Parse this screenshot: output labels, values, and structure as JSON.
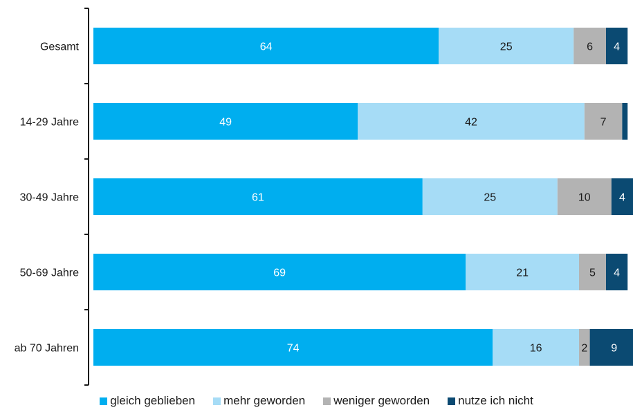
{
  "chart_data": {
    "type": "bar",
    "orientation": "horizontal",
    "stacked": true,
    "categories": [
      "Gesamt",
      "14-29 Jahre",
      "30-49 Jahre",
      "50-69 Jahre",
      "ab 70 Jahren"
    ],
    "series": [
      {
        "name": "gleich geblieben",
        "color": "#00aeef",
        "label_color": "#ffffff",
        "values": [
          64,
          49,
          61,
          69,
          74
        ]
      },
      {
        "name": "mehr geworden",
        "color": "#a6dcf6",
        "label_color": "#1a1a1a",
        "values": [
          25,
          42,
          25,
          21,
          16
        ]
      },
      {
        "name": "weniger geworden",
        "color": "#b3b3b3",
        "label_color": "#1a1a1a",
        "values": [
          6,
          7,
          10,
          5,
          2
        ]
      },
      {
        "name": "nutze ich nicht",
        "color": "#0b4a72",
        "label_color": "#ffffff",
        "values": [
          4,
          1,
          4,
          4,
          9
        ]
      }
    ],
    "data_labels": [
      [
        "64",
        "25",
        "6",
        "4"
      ],
      [
        "49",
        "42",
        "7",
        ""
      ],
      [
        "61",
        "25",
        "10",
        "4"
      ],
      [
        "69",
        "21",
        "5",
        "4"
      ],
      [
        "74",
        "16",
        "2",
        "9"
      ]
    ],
    "xlim": [
      0,
      100
    ],
    "grid": false,
    "legend_position": "bottom"
  }
}
